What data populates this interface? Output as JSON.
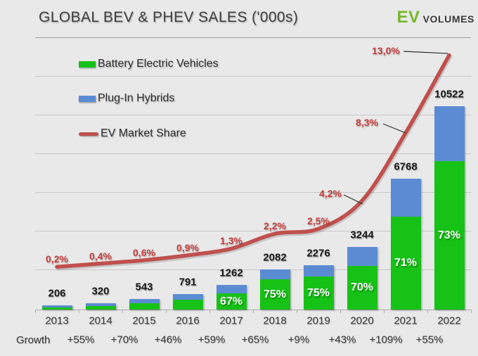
{
  "header": {
    "title": "GLOBAL BEV & PHEV SALES ('000s)",
    "logo_ev": "EV",
    "logo_volumes": "VOLUMES"
  },
  "colors": {
    "background": "#E9E9E9",
    "bev_green": "#16C216",
    "phev_blue": "#5B8CD3",
    "market_share_red": "#C0504D",
    "share_label_red": "#C23D3B",
    "logo_green": "#76B82A"
  },
  "legend": {
    "items": [
      {
        "label": "Battery Electric Vehicles",
        "swatch": "bev-green-rect"
      },
      {
        "label": "Plug-In Hybrids",
        "swatch": "phev-blue-rect"
      },
      {
        "label": "EV Market Share",
        "swatch": "red-line"
      }
    ]
  },
  "growth_caption": "Growth",
  "chart_data": {
    "type": "bar",
    "subtype": "stacked-bars-with-line-overlay",
    "title": "GLOBAL BEV & PHEV SALES ('000s)",
    "unit": "thousands of vehicles",
    "categories": [
      "2013",
      "2014",
      "2015",
      "2016",
      "2017",
      "2018",
      "2019",
      "2020",
      "2021",
      "2022"
    ],
    "totals": [
      206,
      320,
      543,
      791,
      1262,
      2082,
      2276,
      3244,
      6768,
      10522
    ],
    "series": [
      {
        "name": "Battery Electric Vehicles",
        "role": "stack-bottom",
        "color": "#16C216",
        "pct_of_total_labels": [
          null,
          null,
          null,
          null,
          "67%",
          "75%",
          "75%",
          "70%",
          "71%",
          "73%"
        ],
        "visual_fraction": [
          0.55,
          0.6,
          0.62,
          0.66,
          0.67,
          0.75,
          0.75,
          0.7,
          0.71,
          0.73
        ]
      },
      {
        "name": "Plug-In Hybrids",
        "role": "stack-top",
        "color": "#5B8CD3"
      },
      {
        "name": "EV Market Share",
        "type": "line",
        "color": "#C0504D",
        "values_pct": [
          0.2,
          0.4,
          0.6,
          0.9,
          1.3,
          2.2,
          2.5,
          4.2,
          8.3,
          13.0
        ],
        "labels": [
          "0,2%",
          "0,4%",
          "0,6%",
          "0,9%",
          "1,3%",
          "2,2%",
          "2,5%",
          "4,2%",
          "8,3%",
          "13,0%"
        ]
      }
    ],
    "growth_row": [
      "+55%",
      "+70%",
      "+46%",
      "+59%",
      "+65%",
      "+9%",
      "+43%",
      "+109%",
      "+55%"
    ],
    "ylim": [
      0,
      14000
    ],
    "gridline_step_units": 2000,
    "grid": "horizontal-only",
    "y_axis_labels_visible": false,
    "legend_position": "top-left-inside"
  }
}
